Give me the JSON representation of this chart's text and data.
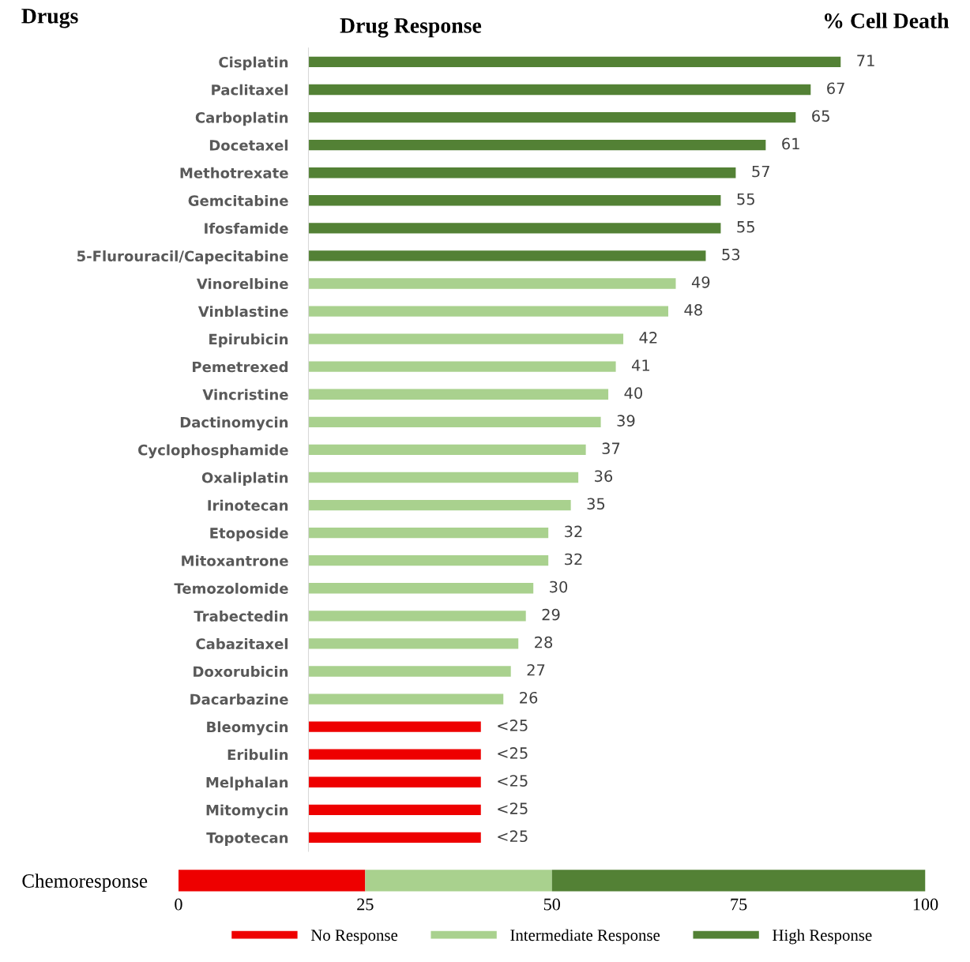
{
  "chart_data": [
    {
      "type": "bar",
      "orientation": "horizontal",
      "title": "Drug Response",
      "ylabel": "Drugs",
      "xlabel": "% Cell Death",
      "tick_labels": "y",
      "categories": [
        "Cisplatin",
        "Paclitaxel",
        "Carboplatin",
        "Docetaxel",
        "Methotrexate",
        "Gemcitabine",
        "Ifosfamide",
        "5-Flurouracil/Capecitabine",
        "Vinorelbine",
        "Vinblastine",
        "Epirubicin",
        "Pemetrexed",
        "Vincristine",
        "Dactinomycin",
        "Cyclophosphamide",
        "Oxaliplatin",
        "Irinotecan",
        "Etoposide",
        "Mitoxantrone",
        "Temozolomide",
        "Trabectedin",
        "Cabazitaxel",
        "Doxorubicin",
        "Dacarbazine",
        "Bleomycin",
        "Eribulin",
        "Melphalan",
        "Mitomycin",
        "Topotecan"
      ],
      "values": [
        71,
        67,
        65,
        61,
        57,
        55,
        55,
        53,
        49,
        48,
        42,
        41,
        40,
        39,
        37,
        36,
        35,
        32,
        32,
        30,
        29,
        28,
        27,
        26,
        23,
        23,
        23,
        23,
        23
      ],
      "value_labels": [
        "71",
        "67",
        "65",
        "61",
        "57",
        "55",
        "55",
        "53",
        "49",
        "48",
        "42",
        "41",
        "40",
        "39",
        "37",
        "36",
        "35",
        "32",
        "32",
        "30",
        "29",
        "28",
        "27",
        "26",
        "<25",
        "<25",
        "<25",
        "<25",
        "<25"
      ],
      "colors": [
        "#538135",
        "#538135",
        "#538135",
        "#538135",
        "#538135",
        "#538135",
        "#538135",
        "#538135",
        "#a9d18e",
        "#a9d18e",
        "#a9d18e",
        "#a9d18e",
        "#a9d18e",
        "#a9d18e",
        "#a9d18e",
        "#a9d18e",
        "#a9d18e",
        "#a9d18e",
        "#a9d18e",
        "#a9d18e",
        "#a9d18e",
        "#a9d18e",
        "#a9d18e",
        "#a9d18e",
        "#ee0000",
        "#ee0000",
        "#ee0000",
        "#ee0000",
        "#ee0000"
      ],
      "grid": false,
      "legend": false
    },
    {
      "type": "bar",
      "orientation": "horizontal",
      "stacked": true,
      "categories": [
        "Chemoresponse"
      ],
      "series": [
        {
          "name": "No Response",
          "color": "#ee0000",
          "values": [
            25
          ]
        },
        {
          "name": "Intermediate Response",
          "color": "#a9d18e",
          "values": [
            25
          ]
        },
        {
          "name": "High Response",
          "color": "#538135",
          "values": [
            50
          ]
        }
      ],
      "xlim": [
        0,
        100
      ],
      "xticks": [
        0,
        25,
        50,
        75,
        100
      ],
      "legend": "bottom",
      "grid": false
    }
  ]
}
